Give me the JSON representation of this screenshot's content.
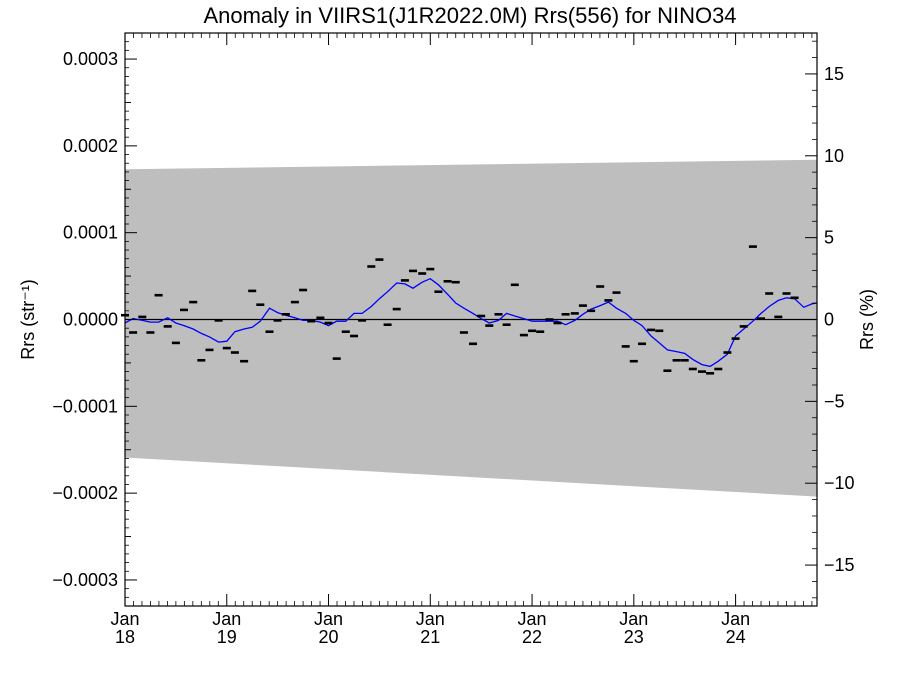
{
  "chart_data": {
    "type": "line",
    "title": "Anomaly in VIIRS1(J1R2022.0M) Rrs(556) for NINO34",
    "ylabel_left": "Rrs (str⁻¹)",
    "ylabel_right": "Rrs (%)",
    "xlim": [
      2018.0,
      2024.8
    ],
    "ylim_left": [
      -0.00033,
      0.00033
    ],
    "ylim_right": [
      -17.5,
      17.5
    ],
    "x_ticks": [
      {
        "x": 2018,
        "month": "Jan",
        "year": "18"
      },
      {
        "x": 2019,
        "month": "Jan",
        "year": "19"
      },
      {
        "x": 2020,
        "month": "Jan",
        "year": "20"
      },
      {
        "x": 2021,
        "month": "Jan",
        "year": "21"
      },
      {
        "x": 2022,
        "month": "Jan",
        "year": "22"
      },
      {
        "x": 2023,
        "month": "Jan",
        "year": "23"
      },
      {
        "x": 2024,
        "month": "Jan",
        "year": "24"
      }
    ],
    "y_ticks_left": [
      {
        "v": 0.0003,
        "label": "0.0003"
      },
      {
        "v": 0.0002,
        "label": "0.0002"
      },
      {
        "v": 0.0001,
        "label": "0.0001"
      },
      {
        "v": 0.0,
        "label": "0.0000"
      },
      {
        "v": -0.0001,
        "label": "−0.0001"
      },
      {
        "v": -0.0002,
        "label": "−0.0002"
      },
      {
        "v": -0.0003,
        "label": "−0.0003"
      }
    ],
    "y_ticks_right": [
      {
        "v": 15,
        "label": "15"
      },
      {
        "v": 10,
        "label": "10"
      },
      {
        "v": 5,
        "label": "5"
      },
      {
        "v": 0,
        "label": "0"
      },
      {
        "v": -5,
        "label": "−5"
      },
      {
        "v": -10,
        "label": "−10"
      },
      {
        "v": -15,
        "label": "−15"
      }
    ],
    "uncertainty_band": {
      "color": "#bebebe",
      "upper": [
        [
          2018.0,
          0.000173
        ],
        [
          2024.8,
          0.000184
        ]
      ],
      "lower": [
        [
          2018.0,
          -0.000159
        ],
        [
          2024.8,
          -0.000204
        ]
      ]
    },
    "zero_line": 0.0,
    "monthly_anomaly": {
      "marker": "dash",
      "color": "#000000",
      "points": [
        [
          2018.0,
          5e-06
        ],
        [
          2018.08,
          -1.5e-05
        ],
        [
          2018.17,
          3e-06
        ],
        [
          2018.25,
          -1.5e-05
        ],
        [
          2018.33,
          2.8e-05
        ],
        [
          2018.42,
          -8e-06
        ],
        [
          2018.5,
          -2.7e-05
        ],
        [
          2018.58,
          1.1e-05
        ],
        [
          2018.67,
          2e-05
        ],
        [
          2018.75,
          -4.7e-05
        ],
        [
          2018.83,
          -3.5e-05
        ],
        [
          2018.92,
          -1e-06
        ],
        [
          2019.0,
          -3.3e-05
        ],
        [
          2019.08,
          -3.8e-05
        ],
        [
          2019.17,
          -4.8e-05
        ],
        [
          2019.25,
          3.3e-05
        ],
        [
          2019.33,
          1.7e-05
        ],
        [
          2019.42,
          -1.4e-05
        ],
        [
          2019.5,
          -1e-06
        ],
        [
          2019.58,
          6e-06
        ],
        [
          2019.67,
          2e-05
        ],
        [
          2019.75,
          3.4e-05
        ],
        [
          2019.83,
          -2e-06
        ],
        [
          2019.92,
          2e-06
        ],
        [
          2020.0,
          -4e-06
        ],
        [
          2020.08,
          -4.5e-05
        ],
        [
          2020.17,
          -1.4e-05
        ],
        [
          2020.25,
          -1.9e-05
        ],
        [
          2020.33,
          -1e-06
        ],
        [
          2020.42,
          6.1e-05
        ],
        [
          2020.5,
          6.9e-05
        ],
        [
          2020.58,
          -6e-06
        ],
        [
          2020.67,
          1.2e-05
        ],
        [
          2020.75,
          4.5e-05
        ],
        [
          2020.83,
          5.6e-05
        ],
        [
          2020.92,
          5.3e-05
        ],
        [
          2021.0,
          5.8e-05
        ],
        [
          2021.08,
          3.2e-05
        ],
        [
          2021.17,
          4.4e-05
        ],
        [
          2021.25,
          4.3e-05
        ],
        [
          2021.33,
          -1.5e-05
        ],
        [
          2021.42,
          -2.8e-05
        ],
        [
          2021.5,
          4e-06
        ],
        [
          2021.58,
          -7e-06
        ],
        [
          2021.67,
          6e-06
        ],
        [
          2021.75,
          -6e-06
        ],
        [
          2021.83,
          4e-05
        ],
        [
          2021.92,
          -1.8e-05
        ],
        [
          2022.0,
          -1.3e-05
        ],
        [
          2022.08,
          -1.4e-05
        ],
        [
          2022.17,
          0.0
        ],
        [
          2022.25,
          -4e-06
        ],
        [
          2022.33,
          6e-06
        ],
        [
          2022.42,
          7e-06
        ],
        [
          2022.5,
          1.6e-05
        ],
        [
          2022.58,
          1e-05
        ],
        [
          2022.67,
          3.8e-05
        ],
        [
          2022.75,
          2.2e-05
        ],
        [
          2022.83,
          3.1e-05
        ],
        [
          2022.92,
          -3.1e-05
        ],
        [
          2023.0,
          -4.8e-05
        ],
        [
          2023.08,
          -2.8e-05
        ],
        [
          2023.17,
          -1.2e-05
        ],
        [
          2023.25,
          -1.3e-05
        ],
        [
          2023.33,
          -5.9e-05
        ],
        [
          2023.42,
          -4.7e-05
        ],
        [
          2023.5,
          -4.7e-05
        ],
        [
          2023.58,
          -5.7e-05
        ],
        [
          2023.67,
          -6e-05
        ],
        [
          2023.75,
          -6.2e-05
        ],
        [
          2023.83,
          -5.7e-05
        ],
        [
          2023.92,
          -3.8e-05
        ],
        [
          2024.0,
          -2.2e-05
        ],
        [
          2024.08,
          -8e-06
        ],
        [
          2024.17,
          8.4e-05
        ],
        [
          2024.25,
          1e-06
        ],
        [
          2024.33,
          3e-05
        ],
        [
          2024.42,
          3e-06
        ],
        [
          2024.5,
          3e-05
        ],
        [
          2024.58,
          2.5e-05
        ]
      ]
    },
    "running_mean": {
      "color": "#0000ff",
      "points": [
        [
          2018.0,
          -4e-06
        ],
        [
          2018.08,
          1e-06
        ],
        [
          2018.17,
          -1e-06
        ],
        [
          2018.25,
          -3e-06
        ],
        [
          2018.33,
          -3e-06
        ],
        [
          2018.42,
          2e-06
        ],
        [
          2018.5,
          -4e-06
        ],
        [
          2018.58,
          -7e-06
        ],
        [
          2018.67,
          -1.1e-05
        ],
        [
          2018.75,
          -1.6e-05
        ],
        [
          2018.83,
          -2e-05
        ],
        [
          2018.92,
          -2.6e-05
        ],
        [
          2019.0,
          -2.5e-05
        ],
        [
          2019.08,
          -1.4e-05
        ],
        [
          2019.17,
          -1.1e-05
        ],
        [
          2019.25,
          -9e-06
        ],
        [
          2019.33,
          -2e-06
        ],
        [
          2019.42,
          1.3e-05
        ],
        [
          2019.5,
          8e-06
        ],
        [
          2019.58,
          5e-06
        ],
        [
          2019.67,
          2e-06
        ],
        [
          2019.75,
          -1e-06
        ],
        [
          2019.83,
          -1e-06
        ],
        [
          2019.92,
          -3e-06
        ],
        [
          2020.0,
          -7e-06
        ],
        [
          2020.08,
          -2e-06
        ],
        [
          2020.17,
          -2e-06
        ],
        [
          2020.25,
          7e-06
        ],
        [
          2020.33,
          7e-06
        ],
        [
          2020.42,
          1.5e-05
        ],
        [
          2020.5,
          2.4e-05
        ],
        [
          2020.58,
          3.2e-05
        ],
        [
          2020.67,
          4.2e-05
        ],
        [
          2020.75,
          4.1e-05
        ],
        [
          2020.83,
          3.6e-05
        ],
        [
          2020.92,
          4.3e-05
        ],
        [
          2021.0,
          4.7e-05
        ],
        [
          2021.08,
          4e-05
        ],
        [
          2021.17,
          2.9e-05
        ],
        [
          2021.25,
          1.9e-05
        ],
        [
          2021.33,
          1.3e-05
        ],
        [
          2021.42,
          7e-06
        ],
        [
          2021.5,
          1e-06
        ],
        [
          2021.58,
          -4e-06
        ],
        [
          2021.67,
          -1e-06
        ],
        [
          2021.75,
          7e-06
        ],
        [
          2021.83,
          4e-06
        ],
        [
          2021.92,
          1e-06
        ],
        [
          2022.0,
          -2e-06
        ],
        [
          2022.08,
          -2e-06
        ],
        [
          2022.17,
          -2e-06
        ],
        [
          2022.25,
          -2e-06
        ],
        [
          2022.33,
          -6e-06
        ],
        [
          2022.42,
          -1e-06
        ],
        [
          2022.5,
          6e-06
        ],
        [
          2022.58,
          1.2e-05
        ],
        [
          2022.67,
          1.6e-05
        ],
        [
          2022.75,
          2e-05
        ],
        [
          2022.83,
          1.3e-05
        ],
        [
          2022.92,
          7e-06
        ],
        [
          2023.0,
          -1e-06
        ],
        [
          2023.08,
          -7e-06
        ],
        [
          2023.17,
          -1.9e-05
        ],
        [
          2023.25,
          -2.7e-05
        ],
        [
          2023.33,
          -3.5e-05
        ],
        [
          2023.42,
          -3.7e-05
        ],
        [
          2023.5,
          -3.9e-05
        ],
        [
          2023.58,
          -4.6e-05
        ],
        [
          2023.67,
          -5.2e-05
        ],
        [
          2023.75,
          -5.4e-05
        ],
        [
          2023.83,
          -4.8e-05
        ],
        [
          2023.92,
          -4e-05
        ],
        [
          2024.0,
          -1.9e-05
        ],
        [
          2024.08,
          -1.1e-05
        ],
        [
          2024.17,
          -2e-06
        ],
        [
          2024.25,
          7e-06
        ],
        [
          2024.33,
          1.5e-05
        ],
        [
          2024.42,
          2.2e-05
        ],
        [
          2024.5,
          2.5e-05
        ],
        [
          2024.58,
          2.4e-05
        ],
        [
          2024.67,
          1.4e-05
        ],
        [
          2024.75,
          1.8e-05
        ],
        [
          2024.8,
          1.9e-05
        ]
      ]
    },
    "grid": false,
    "legend": "none"
  }
}
